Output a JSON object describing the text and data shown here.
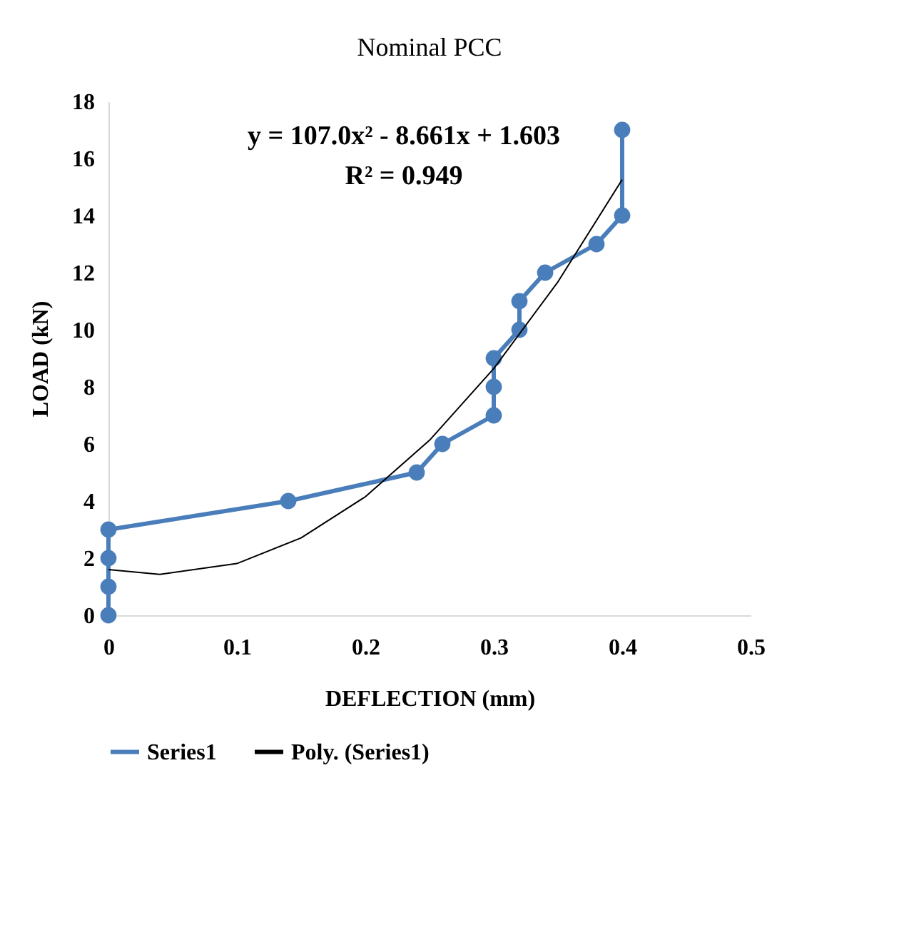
{
  "chart_data": {
    "type": "line",
    "title": "Nominal PCC",
    "xlabel": "DEFLECTION (mm)",
    "ylabel": "LOAD (kN)",
    "xlim": [
      0,
      0.5
    ],
    "xticks": [
      0,
      0.1,
      0.2,
      0.3,
      0.4,
      0.5
    ],
    "ylim": [
      0,
      18
    ],
    "yticks": [
      0,
      2,
      4,
      6,
      8,
      10,
      12,
      14,
      16,
      18
    ],
    "grid": false,
    "legend": "bottom",
    "annotations": [
      "y = 107.0x² - 8.661x + 1.603",
      "R² = 0.949"
    ],
    "series": [
      {
        "name": "Series1",
        "color": "#4a7ebb",
        "marker": "circle",
        "x": [
          0,
          0,
          0,
          0,
          0.14,
          0.24,
          0.26,
          0.3,
          0.3,
          0.3,
          0.32,
          0.32,
          0.34,
          0.38,
          0.4,
          0.4
        ],
        "values": [
          0,
          1,
          2,
          3,
          4,
          5,
          6,
          7,
          8,
          9,
          10,
          11,
          12,
          13,
          14,
          17
        ]
      },
      {
        "name": "Poly. (Series1)",
        "color": "#000000",
        "marker": "none",
        "type": "line",
        "x": [
          0,
          0.04,
          0.1,
          0.15,
          0.2,
          0.25,
          0.3,
          0.35,
          0.4
        ],
        "values": [
          1.6,
          1.43,
          1.81,
          2.71,
          4.15,
          6.13,
          8.64,
          11.68,
          15.26
        ]
      }
    ]
  }
}
